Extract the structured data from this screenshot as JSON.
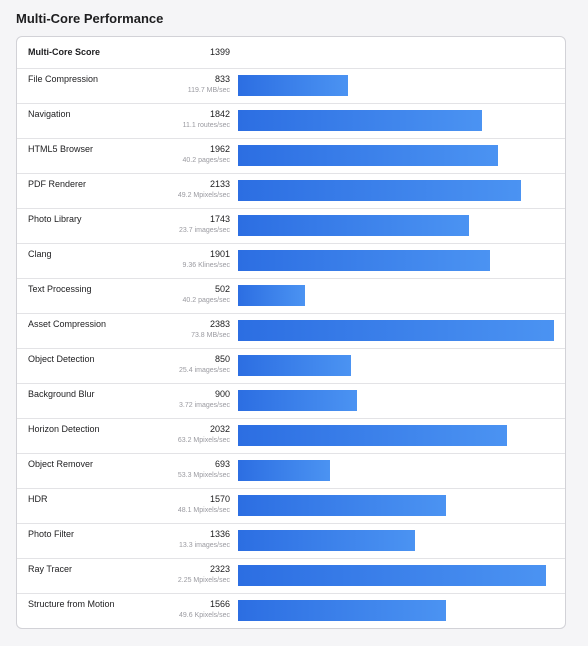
{
  "title": "Multi-Core Performance",
  "header": {
    "label": "Multi-Core Score",
    "score": 1399
  },
  "rows": [
    {
      "name": "File Compression",
      "score": 833,
      "rate": "119.7 MB/sec"
    },
    {
      "name": "Navigation",
      "score": 1842,
      "rate": "11.1 routes/sec"
    },
    {
      "name": "HTML5 Browser",
      "score": 1962,
      "rate": "40.2 pages/sec"
    },
    {
      "name": "PDF Renderer",
      "score": 2133,
      "rate": "49.2 Mpixels/sec"
    },
    {
      "name": "Photo Library",
      "score": 1743,
      "rate": "23.7 images/sec"
    },
    {
      "name": "Clang",
      "score": 1901,
      "rate": "9.36 Klines/sec"
    },
    {
      "name": "Text Processing",
      "score": 502,
      "rate": "40.2 pages/sec"
    },
    {
      "name": "Asset Compression",
      "score": 2383,
      "rate": "73.8 MB/sec"
    },
    {
      "name": "Object Detection",
      "score": 850,
      "rate": "25.4 images/sec"
    },
    {
      "name": "Background Blur",
      "score": 900,
      "rate": "3.72 images/sec"
    },
    {
      "name": "Horizon Detection",
      "score": 2032,
      "rate": "63.2 Mpixels/sec"
    },
    {
      "name": "Object Remover",
      "score": 693,
      "rate": "53.3 Mpixels/sec"
    },
    {
      "name": "HDR",
      "score": 1570,
      "rate": "48.1 Mpixels/sec"
    },
    {
      "name": "Photo Filter",
      "score": 1336,
      "rate": "13.3 images/sec"
    },
    {
      "name": "Ray Tracer",
      "score": 2323,
      "rate": "2.25 Mpixels/sec"
    },
    {
      "name": "Structure from Motion",
      "score": 1566,
      "rate": "49.6 Kpixels/sec"
    }
  ]
}
